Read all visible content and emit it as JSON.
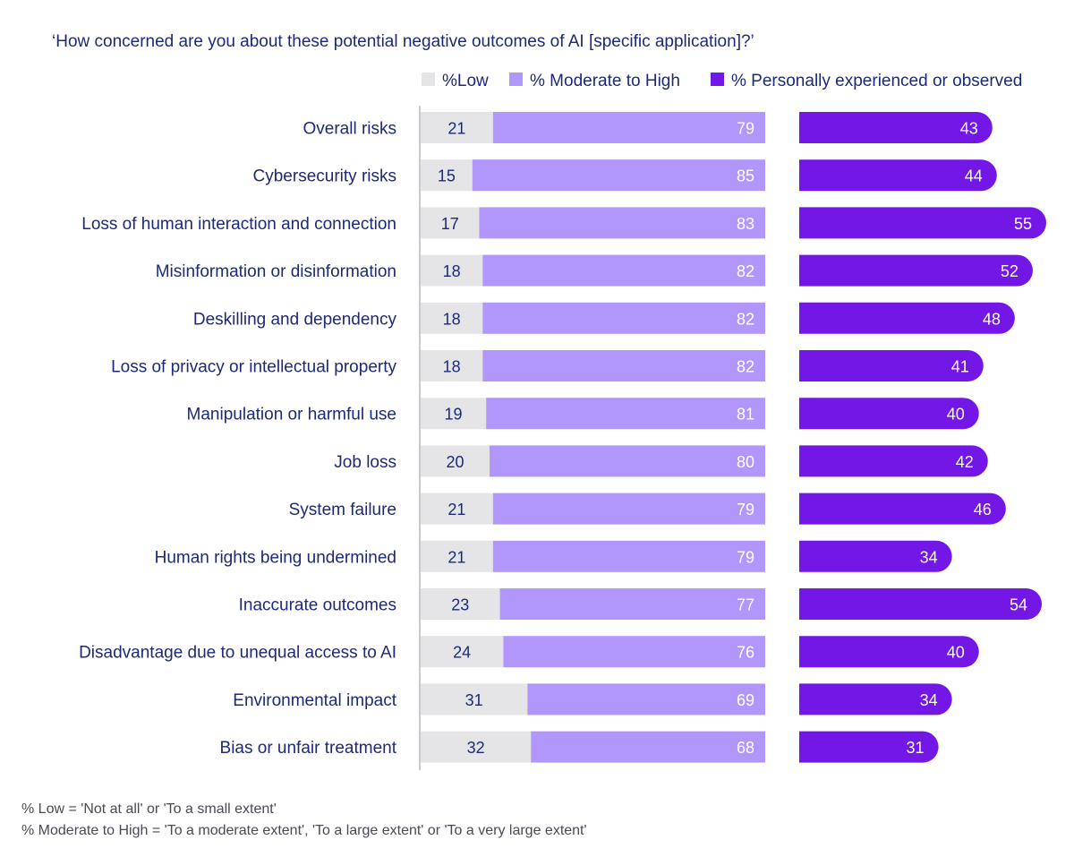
{
  "chart_data": {
    "type": "bar",
    "title": "‘How concerned are you about these potential negative outcomes of AI [specific application]?’",
    "legend": [
      "%Low",
      "% Moderate to High",
      "% Personally experienced or observed"
    ],
    "colors": {
      "low": "#e5e5e8",
      "moderate": "#b197fc",
      "experienced": "#7317e6",
      "text": "#1c2a78"
    },
    "categories": [
      "Overall risks",
      "Cybersecurity risks",
      "Loss of human interaction and connection",
      "Misinformation or disinformation",
      "Deskilling and dependency",
      "Loss of privacy or intellectual property",
      "Manipulation or harmful use",
      "Job loss",
      "System failure",
      "Human rights being undermined",
      "Inaccurate outcomes",
      "Disadvantage due to unequal access to AI",
      "Environmental impact",
      "Bias or unfair treatment"
    ],
    "series": [
      {
        "name": "%Low",
        "values": [
          21,
          15,
          17,
          18,
          18,
          18,
          19,
          20,
          21,
          21,
          23,
          24,
          31,
          32
        ]
      },
      {
        "name": "% Moderate to High",
        "values": [
          79,
          85,
          83,
          82,
          82,
          82,
          81,
          80,
          79,
          79,
          77,
          76,
          69,
          68
        ]
      },
      {
        "name": "% Personally experienced or observed",
        "values": [
          43,
          44,
          55,
          52,
          48,
          41,
          40,
          42,
          46,
          34,
          54,
          40,
          34,
          31
        ]
      }
    ],
    "footnotes": [
      "% Low = 'Not at all' or 'To a small extent'",
      "% Moderate to High = 'To a moderate extent', 'To a large extent' or 'To a very large extent'"
    ]
  }
}
